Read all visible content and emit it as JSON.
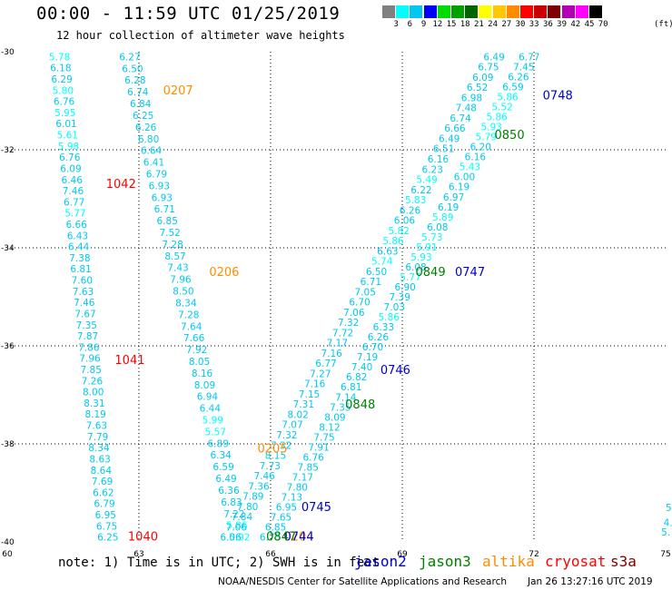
{
  "header": {
    "title": "00:00 - 11:59 UTC 01/25/2019",
    "subtitle": "12 hour collection of altimeter wave heights"
  },
  "color_scale": {
    "labels": [
      "3",
      "6",
      "9",
      "12",
      "15",
      "18",
      "21",
      "24",
      "27",
      "30",
      "33",
      "36",
      "39",
      "42",
      "45",
      "70"
    ],
    "unit": "(ft)",
    "colors": [
      "#808080",
      "#00ffff",
      "#00c8f0",
      "#0000ff",
      "#00dc00",
      "#00a000",
      "#006400",
      "#ffff00",
      "#ffc800",
      "#ff8c00",
      "#ff0000",
      "#c80000",
      "#800000",
      "#b400b4",
      "#ff00ff",
      "#000000"
    ]
  },
  "footer": {
    "note": "note: 1) Time is in UTC; 2) SWH is in feet",
    "satellites": [
      {
        "name": "jason2",
        "color": "#0000cc"
      },
      {
        "name": "jason3",
        "color": "#008000"
      },
      {
        "name": "altika",
        "color": "#ff8c00"
      },
      {
        "name": "cryosat",
        "color": "#ff0000"
      },
      {
        "name": "s3a",
        "color": "#800000"
      }
    ],
    "credit": "NOAA/NESDIS Center for Satellite Applications and Research",
    "timestamp": "Jan 26 13:27:16 UTC 2019"
  },
  "chart_data": {
    "type": "scatter",
    "title": "00:00 - 11:59 UTC 01/25/2019",
    "subtitle": "12 hour collection of altimeter wave heights",
    "xlim": [
      60,
      75
    ],
    "ylim": [
      -40,
      -30
    ],
    "x_ticks": [
      "60",
      "63",
      "66",
      "69",
      "72",
      "75"
    ],
    "y_ticks": [
      "-30",
      "-32",
      "-34",
      "-36",
      "-38",
      "-40"
    ],
    "grid": true,
    "tracks": [
      {
        "id": "t1",
        "values": [
          "5.78",
          "6.18",
          "6.29",
          "5.80",
          "6.76",
          "5.95",
          "6.01",
          "5.61",
          "5.98",
          "6.76",
          "6.09",
          "6.46",
          "7.46",
          "6.77",
          "5.77",
          "6.66",
          "6.43",
          "6.44",
          "7.38",
          "6.81",
          "7.60",
          "7.63",
          "7.46",
          "7.67",
          "7.35",
          "7.87",
          "7.86",
          "7.96",
          "7.85",
          "7.26",
          "8.00",
          "8.31",
          "8.19",
          "7.63",
          "7.79",
          "8.34",
          "8.63",
          "8.64",
          "7.69",
          "6.62",
          "6.79",
          "6.95",
          "6.75",
          "6.25"
        ],
        "x_start": 60.95,
        "y_start": -30.1,
        "x_end": 62.05,
        "y_end": -39.9
      },
      {
        "id": "t2",
        "values": [
          "6.27",
          "6.50",
          "6.28",
          "6.74",
          "6.84",
          "6.25",
          "6.26",
          "6.80",
          "6.64",
          "6.41",
          "6.79",
          "6.93",
          "6.93",
          "6.71",
          "6.85",
          "7.52",
          "7.28",
          "8.57",
          "7.43",
          "7.96",
          "8.50",
          "8.34",
          "7.28",
          "7.64",
          "7.66",
          "7.92",
          "8.05",
          "8.16",
          "8.09",
          "6.94",
          "6.44",
          "5.99",
          "5.57",
          "6.89",
          "6.34",
          "6.59",
          "6.49",
          "6.36",
          "6.83",
          "7.22",
          "5.86",
          "5.92"
        ],
        "x_start": 62.55,
        "y_start": -30.1,
        "x_end": 65.05,
        "y_end": -39.9
      },
      {
        "id": "t3",
        "values": [
          "6.77",
          "7.45",
          "6.26",
          "6.59",
          "5.86",
          "5.52",
          "5.86",
          "5.93",
          "5.79",
          "6.20",
          "6.16",
          "5.43",
          "6.00",
          "6.19",
          "6.97",
          "6.19",
          "5.89",
          "6.08",
          "5.73",
          "5.91",
          "5.93",
          "6.08",
          "5.77",
          "6.90",
          "7.39",
          "7.03",
          "5.86",
          "6.33",
          "6.26",
          "6.70",
          "7.19",
          "7.40",
          "6.82",
          "6.81",
          "7.14",
          "7.35",
          "8.09",
          "8.12",
          "7.75",
          "7.91",
          "6.76",
          "7.85",
          "7.17",
          "7.80",
          "7.13",
          "6.95",
          "7.65",
          "6.85",
          "6.75"
        ],
        "x_start": 71.65,
        "y_start": -30.1,
        "x_end": 65.75,
        "y_end": -39.9
      },
      {
        "id": "t4",
        "values": [
          "6.49",
          "6.75",
          "6.09",
          "6.52",
          "6.98",
          "7.48",
          "6.74",
          "6.66",
          "6.49",
          "6.51",
          "6.16",
          "6.23",
          "5.49",
          "6.22",
          "5.83",
          "6.26",
          "6.06",
          "5.82",
          "5.86",
          "6.63",
          "5.74",
          "6.50",
          "6.71",
          "7.05",
          "6.70",
          "7.06",
          "7.32",
          "7.72",
          "7.17",
          "7.16",
          "6.77",
          "7.27",
          "7.16",
          "7.15",
          "7.31",
          "8.02",
          "7.07",
          "7.32",
          "7.32",
          "8.15",
          "7.73",
          "7.46",
          "7.36",
          "7.89",
          "7.80",
          "7.84",
          "7.06",
          "6.06"
        ],
        "x_start": 70.85,
        "y_start": -30.1,
        "x_end": 64.85,
        "y_end": -39.9
      }
    ],
    "pass_labels": [
      {
        "text": "1042",
        "satellite": "cryosat",
        "x": 62.25,
        "y": -32.7
      },
      {
        "text": "1041",
        "satellite": "cryosat",
        "x": 62.45,
        "y": -36.3
      },
      {
        "text": "1040",
        "satellite": "cryosat",
        "x": 62.75,
        "y": -39.9
      },
      {
        "text": "0207",
        "satellite": "altika",
        "x": 63.55,
        "y": -30.8
      },
      {
        "text": "0206",
        "satellite": "altika",
        "x": 64.6,
        "y": -34.5
      },
      {
        "text": "0205",
        "satellite": "altika",
        "x": 65.7,
        "y": -38.1
      },
      {
        "text": "0204",
        "satellite": "altika",
        "x": 66.3,
        "y": -39.9
      },
      {
        "text": "0748",
        "satellite": "jason2",
        "x": 72.2,
        "y": -30.9
      },
      {
        "text": "0747",
        "satellite": "jason2",
        "x": 70.2,
        "y": -34.5
      },
      {
        "text": "0746",
        "satellite": "jason2",
        "x": 68.5,
        "y": -36.5
      },
      {
        "text": "0745",
        "satellite": "jason2",
        "x": 66.7,
        "y": -39.3
      },
      {
        "text": "0744",
        "satellite": "jason2",
        "x": 66.3,
        "y": -39.9
      },
      {
        "text": "0850",
        "satellite": "jason3",
        "x": 71.1,
        "y": -31.7
      },
      {
        "text": "0849",
        "satellite": "jason3",
        "x": 69.3,
        "y": -34.5
      },
      {
        "text": "0848",
        "satellite": "jason3",
        "x": 67.7,
        "y": -37.2
      },
      {
        "text": "0847",
        "satellite": "jason3",
        "x": 65.9,
        "y": -39.9
      }
    ],
    "edge_values": [
      {
        "text": "5.",
        "x": 75.0,
        "y": -39.3
      },
      {
        "text": "4.",
        "x": 74.95,
        "y": -39.6
      },
      {
        "text": "5.",
        "x": 74.9,
        "y": -39.8
      }
    ]
  }
}
